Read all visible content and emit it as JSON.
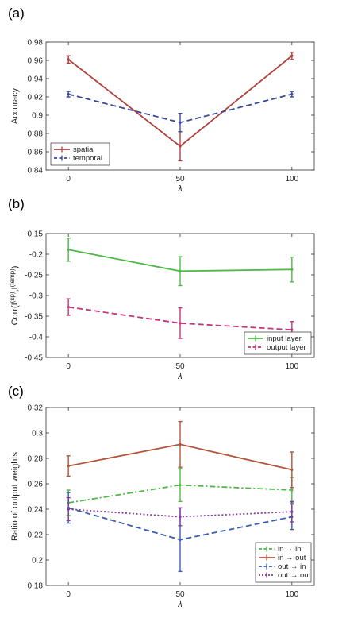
{
  "chart_data": [
    {
      "panel_label": "(a)",
      "type": "line",
      "x": [
        0,
        50,
        100
      ],
      "xlabel": "λ",
      "ylabel": "Accuracy",
      "xlim": [
        -10,
        110
      ],
      "ylim": [
        0.84,
        0.98
      ],
      "xticks": [
        "0",
        "50",
        "100"
      ],
      "yticks": [
        "0.84",
        "0.86",
        "0.88",
        "0.9",
        "0.92",
        "0.94",
        "0.96",
        "0.98"
      ],
      "legend_position": "bottom-left",
      "series": [
        {
          "name": "spatial",
          "color": "#b0413e",
          "style": "solid",
          "values": [
            0.961,
            0.866,
            0.965
          ],
          "errors": [
            0.004,
            0.016,
            0.004
          ]
        },
        {
          "name": "temporal",
          "color": "#3a4a9a",
          "style": "dashed",
          "values": [
            0.923,
            0.892,
            0.923
          ],
          "errors": [
            0.003,
            0.01,
            0.003
          ]
        }
      ]
    },
    {
      "panel_label": "(b)",
      "type": "line",
      "x": [
        0,
        50,
        100
      ],
      "xlabel": "λ",
      "ylabel_base": "Corr(I",
      "ylabel_sup1": "(sp)",
      "ylabel_mid": ",I",
      "ylabel_sup2": "(temp)",
      "ylabel_end": ")",
      "xlim": [
        -10,
        110
      ],
      "ylim": [
        -0.45,
        -0.15
      ],
      "xticks": [
        "0",
        "50",
        "100"
      ],
      "yticks": [
        "-0.45",
        "-0.4",
        "-0.35",
        "-0.3",
        "-0.25",
        "-0.2",
        "-0.15"
      ],
      "legend_position": "bottom-right",
      "series": [
        {
          "name": "input layer",
          "color": "#4fb848",
          "style": "solid",
          "values": [
            -0.189,
            -0.241,
            -0.237
          ],
          "errors": [
            0.028,
            0.035,
            0.03
          ]
        },
        {
          "name": "output layer",
          "color": "#c6347e",
          "style": "dashed",
          "values": [
            -0.328,
            -0.367,
            -0.383
          ],
          "errors": [
            0.02,
            0.037,
            0.02
          ]
        }
      ]
    },
    {
      "panel_label": "(c)",
      "type": "line",
      "x": [
        0,
        50,
        100
      ],
      "xlabel": "λ",
      "ylabel": "Ratio of output weights",
      "xlim": [
        -10,
        110
      ],
      "ylim": [
        0.18,
        0.32
      ],
      "xticks": [
        "0",
        "50",
        "100"
      ],
      "yticks": [
        "0.18",
        "0.2",
        "0.22",
        "0.24",
        "0.26",
        "0.28",
        "0.3",
        "0.32"
      ],
      "legend_position": "bottom-right",
      "series": [
        {
          "name": "in → in",
          "color": "#4fb848",
          "style": "dashdot",
          "values": [
            0.245,
            0.259,
            0.255
          ],
          "errors": [
            0.01,
            0.013,
            0.01
          ]
        },
        {
          "name": "in → out",
          "color": "#b0553a",
          "style": "solid",
          "values": [
            0.274,
            0.291,
            0.271
          ],
          "errors": [
            0.008,
            0.018,
            0.014
          ]
        },
        {
          "name": "out → in",
          "color": "#3a5fb0",
          "style": "dashed",
          "values": [
            0.241,
            0.216,
            0.234
          ],
          "errors": [
            0.012,
            0.025,
            0.01
          ]
        },
        {
          "name": "out → out",
          "color": "#8a3a9a",
          "style": "dotted",
          "values": [
            0.24,
            0.234,
            0.238
          ],
          "errors": [
            0.009,
            0.007,
            0.008
          ]
        }
      ]
    }
  ]
}
